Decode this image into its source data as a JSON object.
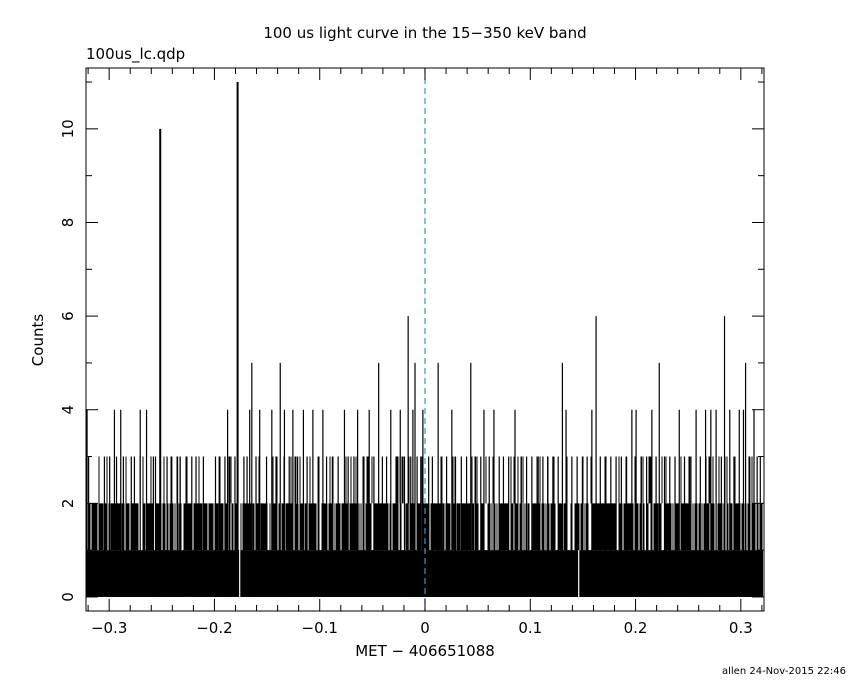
{
  "chart_data": {
    "type": "line",
    "title": "100 us light curve in the 15−350 keV band",
    "subtitle": "100us_lc.qdp",
    "xlabel": "MET − 406651088",
    "ylabel": "Counts",
    "xlim": [
      -0.322,
      0.322
    ],
    "ylim": [
      -0.3,
      11.3
    ],
    "xticks": [
      -0.3,
      -0.2,
      -0.1,
      0,
      0.1,
      0.2,
      0.3
    ],
    "xtick_labels": [
      "−0.3",
      "−0.2",
      "−0.1",
      "0",
      "0.1",
      "0.2",
      "0.3"
    ],
    "yticks": [
      0,
      2,
      4,
      6,
      8,
      10
    ],
    "ytick_labels": [
      "0",
      "2",
      "4",
      "6",
      "8",
      "10"
    ],
    "grid": false,
    "bin_width": 0.0001,
    "baseline_counts": "0-3 counts per 100 us bin",
    "reference_line": {
      "x": 0,
      "style": "dashed",
      "color": "#3399cc"
    },
    "series": [
      {
        "points": [
          {
            "x": -0.321,
            "y": 4
          },
          {
            "x": -0.3195,
            "y": 3
          },
          {
            "x": -0.3045,
            "y": 3
          },
          {
            "x": -0.2995,
            "y": 3
          },
          {
            "x": -0.295,
            "y": 4
          },
          {
            "x": -0.293,
            "y": 3
          },
          {
            "x": -0.289,
            "y": 4
          },
          {
            "x": -0.2865,
            "y": 3
          },
          {
            "x": -0.279,
            "y": 3
          },
          {
            "x": -0.276,
            "y": 3
          },
          {
            "x": -0.2705,
            "y": 4
          },
          {
            "x": -0.2645,
            "y": 4
          },
          {
            "x": -0.258,
            "y": 3
          },
          {
            "x": -0.256,
            "y": 3
          },
          {
            "x": -0.2515,
            "y": 10
          },
          {
            "x": -0.245,
            "y": 3
          },
          {
            "x": -0.2405,
            "y": 3
          },
          {
            "x": -0.235,
            "y": 3
          },
          {
            "x": -0.2325,
            "y": 3
          },
          {
            "x": -0.2215,
            "y": 3
          },
          {
            "x": -0.2175,
            "y": 3
          },
          {
            "x": -0.2105,
            "y": 3
          },
          {
            "x": -0.199,
            "y": 3
          },
          {
            "x": -0.1955,
            "y": 3
          },
          {
            "x": -0.19,
            "y": 3
          },
          {
            "x": -0.1875,
            "y": 4
          },
          {
            "x": -0.1855,
            "y": 3
          },
          {
            "x": -0.1805,
            "y": 3
          },
          {
            "x": -0.178,
            "y": 11
          },
          {
            "x": -0.172,
            "y": 3
          },
          {
            "x": -0.169,
            "y": 3
          },
          {
            "x": -0.1665,
            "y": 4
          },
          {
            "x": -0.1645,
            "y": 5
          },
          {
            "x": -0.1605,
            "y": 3
          },
          {
            "x": -0.157,
            "y": 4
          },
          {
            "x": -0.1505,
            "y": 3
          },
          {
            "x": -0.1455,
            "y": 4
          },
          {
            "x": -0.1415,
            "y": 3
          },
          {
            "x": -0.1375,
            "y": 5
          },
          {
            "x": -0.1335,
            "y": 4
          },
          {
            "x": -0.129,
            "y": 3
          },
          {
            "x": -0.1255,
            "y": 4
          },
          {
            "x": -0.121,
            "y": 3
          },
          {
            "x": -0.1155,
            "y": 4
          },
          {
            "x": -0.112,
            "y": 3
          },
          {
            "x": -0.1065,
            "y": 4
          },
          {
            "x": -0.1015,
            "y": 3
          },
          {
            "x": -0.097,
            "y": 4
          },
          {
            "x": -0.0935,
            "y": 3
          },
          {
            "x": -0.088,
            "y": 3
          },
          {
            "x": -0.0825,
            "y": 3
          },
          {
            "x": -0.0765,
            "y": 4
          },
          {
            "x": -0.073,
            "y": 3
          },
          {
            "x": -0.0675,
            "y": 3
          },
          {
            "x": -0.064,
            "y": 4
          },
          {
            "x": -0.058,
            "y": 3
          },
          {
            "x": -0.053,
            "y": 4
          },
          {
            "x": -0.0485,
            "y": 3
          },
          {
            "x": -0.044,
            "y": 5
          },
          {
            "x": -0.0405,
            "y": 3
          },
          {
            "x": -0.0365,
            "y": 3
          },
          {
            "x": -0.0325,
            "y": 4
          },
          {
            "x": -0.0275,
            "y": 3
          },
          {
            "x": -0.0235,
            "y": 4
          },
          {
            "x": -0.0195,
            "y": 3
          },
          {
            "x": -0.016,
            "y": 6
          },
          {
            "x": -0.0135,
            "y": 3
          },
          {
            "x": -0.0115,
            "y": 4
          },
          {
            "x": -0.0095,
            "y": 5
          },
          {
            "x": -0.0075,
            "y": 3
          },
          {
            "x": -0.004,
            "y": 3
          },
          {
            "x": -0.002,
            "y": 4
          },
          {
            "x": 0.0035,
            "y": 3
          },
          {
            "x": 0.007,
            "y": 3
          },
          {
            "x": 0.0125,
            "y": 5
          },
          {
            "x": 0.016,
            "y": 3
          },
          {
            "x": 0.0205,
            "y": 3
          },
          {
            "x": 0.0255,
            "y": 4
          },
          {
            "x": 0.029,
            "y": 3
          },
          {
            "x": 0.0345,
            "y": 3
          },
          {
            "x": 0.0395,
            "y": 3
          },
          {
            "x": 0.0435,
            "y": 5
          },
          {
            "x": 0.048,
            "y": 3
          },
          {
            "x": 0.053,
            "y": 3
          },
          {
            "x": 0.056,
            "y": 4
          },
          {
            "x": 0.061,
            "y": 3
          },
          {
            "x": 0.0655,
            "y": 4
          },
          {
            "x": 0.0705,
            "y": 3
          },
          {
            "x": 0.0745,
            "y": 3
          },
          {
            "x": 0.0795,
            "y": 3
          },
          {
            "x": 0.0855,
            "y": 4
          },
          {
            "x": 0.0915,
            "y": 3
          },
          {
            "x": 0.0965,
            "y": 3
          },
          {
            "x": 0.1015,
            "y": 3
          },
          {
            "x": 0.1075,
            "y": 3
          },
          {
            "x": 0.112,
            "y": 3
          },
          {
            "x": 0.1165,
            "y": 3
          },
          {
            "x": 0.1215,
            "y": 3
          },
          {
            "x": 0.1265,
            "y": 3
          },
          {
            "x": 0.1305,
            "y": 5
          },
          {
            "x": 0.134,
            "y": 4
          },
          {
            "x": 0.1395,
            "y": 3
          },
          {
            "x": 0.1445,
            "y": 3
          },
          {
            "x": 0.1495,
            "y": 3
          },
          {
            "x": 0.154,
            "y": 3
          },
          {
            "x": 0.1585,
            "y": 4
          },
          {
            "x": 0.1625,
            "y": 6
          },
          {
            "x": 0.1665,
            "y": 3
          },
          {
            "x": 0.1715,
            "y": 3
          },
          {
            "x": 0.1765,
            "y": 3
          },
          {
            "x": 0.1815,
            "y": 3
          },
          {
            "x": 0.1865,
            "y": 3
          },
          {
            "x": 0.1915,
            "y": 3
          },
          {
            "x": 0.1965,
            "y": 4
          },
          {
            "x": 0.2005,
            "y": 4
          },
          {
            "x": 0.2055,
            "y": 3
          },
          {
            "x": 0.2105,
            "y": 3
          },
          {
            "x": 0.2155,
            "y": 4
          },
          {
            "x": 0.2195,
            "y": 3
          },
          {
            "x": 0.2225,
            "y": 5
          },
          {
            "x": 0.2275,
            "y": 3
          },
          {
            "x": 0.2325,
            "y": 3
          },
          {
            "x": 0.2375,
            "y": 3
          },
          {
            "x": 0.2415,
            "y": 4
          },
          {
            "x": 0.2465,
            "y": 3
          },
          {
            "x": 0.2515,
            "y": 3
          },
          {
            "x": 0.2575,
            "y": 4
          },
          {
            "x": 0.2615,
            "y": 3
          },
          {
            "x": 0.2665,
            "y": 4
          },
          {
            "x": 0.2715,
            "y": 4
          },
          {
            "x": 0.2765,
            "y": 4
          },
          {
            "x": 0.2815,
            "y": 3
          },
          {
            "x": 0.2845,
            "y": 6
          },
          {
            "x": 0.2895,
            "y": 4
          },
          {
            "x": 0.2935,
            "y": 3
          },
          {
            "x": 0.2985,
            "y": 4
          },
          {
            "x": 0.3025,
            "y": 4
          },
          {
            "x": 0.3045,
            "y": 5
          },
          {
            "x": 0.3085,
            "y": 3
          },
          {
            "x": 0.3125,
            "y": 4
          },
          {
            "x": 0.3155,
            "y": 3
          },
          {
            "x": 0.3185,
            "y": 3
          }
        ]
      }
    ]
  },
  "footer": {
    "credit": "allen 24-Nov-2015 22:46"
  }
}
